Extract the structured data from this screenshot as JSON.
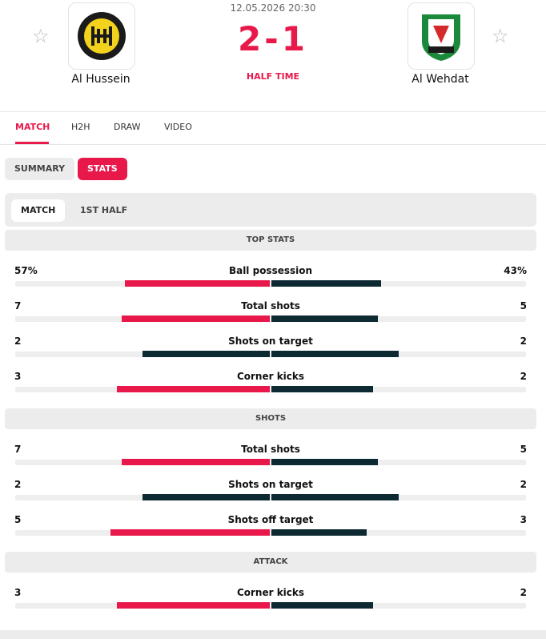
{
  "match": {
    "datetime": "12.05.2026 20:30",
    "home": "Al Hussein",
    "away": "Al Wehdat",
    "score": "2-1",
    "status": "HALF TIME"
  },
  "tabs": [
    "MATCH",
    "H2H",
    "DRAW",
    "VIDEO"
  ],
  "subtabs": [
    "SUMMARY",
    "STATS"
  ],
  "periods": [
    "MATCH",
    "1ST HALF"
  ],
  "sections": [
    {
      "title": "TOP STATS",
      "rows": [
        {
          "name": "Ball possession",
          "values": [
            57,
            43
          ],
          "value_labels": [
            "57%",
            "43%"
          ]
        },
        {
          "name": "Total shots",
          "values": [
            7,
            5
          ]
        },
        {
          "name": "Shots on target",
          "values": [
            2,
            2
          ]
        },
        {
          "name": "Corner kicks",
          "values": [
            3,
            2
          ]
        }
      ]
    },
    {
      "title": "SHOTS",
      "rows": [
        {
          "name": "Total shots",
          "values": [
            7,
            5
          ]
        },
        {
          "name": "Shots on target",
          "values": [
            2,
            2
          ]
        },
        {
          "name": "Shots off target",
          "values": [
            5,
            3
          ]
        }
      ]
    },
    {
      "title": "ATTACK",
      "rows": [
        {
          "name": "Corner kicks",
          "values": [
            3,
            2
          ]
        }
      ]
    }
  ]
}
